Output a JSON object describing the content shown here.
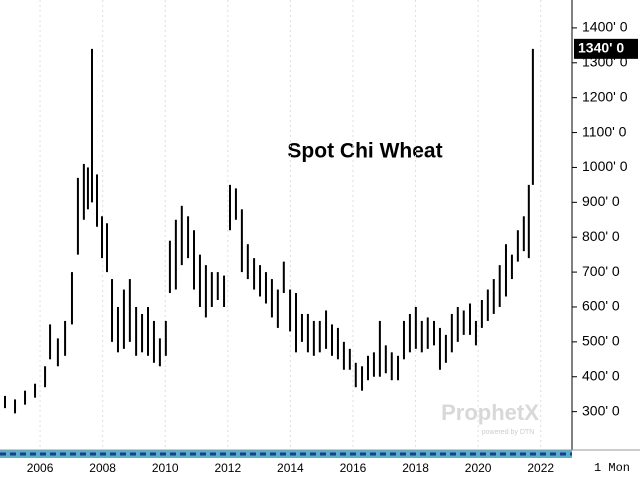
{
  "chart_data": {
    "type": "range",
    "title": "Spot Chi Wheat",
    "color": "#000000",
    "x": [
      2004.88,
      2005.2,
      2005.52,
      2005.84,
      2006.16,
      2006.32,
      2006.57,
      2006.8,
      2007.02,
      2007.21,
      2007.4,
      2007.53,
      2007.66,
      2007.82,
      2007.98,
      2008.14,
      2008.3,
      2008.49,
      2008.68,
      2008.87,
      2009.07,
      2009.26,
      2009.45,
      2009.64,
      2009.83,
      2010.02,
      2010.15,
      2010.34,
      2010.53,
      2010.73,
      2010.92,
      2011.11,
      2011.3,
      2011.49,
      2011.68,
      2011.88,
      2012.07,
      2012.26,
      2012.45,
      2012.64,
      2012.84,
      2013.03,
      2013.22,
      2013.41,
      2013.6,
      2013.79,
      2013.99,
      2014.18,
      2014.37,
      2014.56,
      2014.75,
      2014.94,
      2015.14,
      2015.33,
      2015.52,
      2015.71,
      2015.9,
      2016.09,
      2016.29,
      2016.48,
      2016.67,
      2016.86,
      2017.05,
      2017.24,
      2017.44,
      2017.63,
      2017.82,
      2018.01,
      2018.2,
      2018.39,
      2018.59,
      2018.78,
      2018.97,
      2019.16,
      2019.35,
      2019.54,
      2019.74,
      2019.93,
      2020.12,
      2020.31,
      2020.5,
      2020.69,
      2020.89,
      2021.08,
      2021.27,
      2021.46,
      2021.62,
      2021.75
    ],
    "high": [
      345,
      335,
      360,
      380,
      430,
      550,
      510,
      560,
      700,
      970,
      1010,
      1000,
      1340,
      980,
      860,
      840,
      680,
      600,
      650,
      680,
      600,
      580,
      600,
      560,
      510,
      560,
      790,
      850,
      890,
      860,
      820,
      750,
      720,
      700,
      700,
      690,
      950,
      940,
      880,
      780,
      740,
      720,
      700,
      680,
      650,
      730,
      650,
      640,
      580,
      580,
      560,
      560,
      590,
      550,
      540,
      500,
      480,
      440,
      430,
      460,
      470,
      560,
      490,
      470,
      460,
      560,
      580,
      600,
      560,
      570,
      560,
      540,
      520,
      580,
      600,
      590,
      610,
      560,
      620,
      650,
      680,
      720,
      780,
      750,
      820,
      860,
      950,
      1340
    ],
    "low": [
      310,
      295,
      320,
      340,
      370,
      450,
      430,
      460,
      550,
      750,
      850,
      880,
      900,
      830,
      740,
      700,
      500,
      470,
      480,
      500,
      460,
      470,
      460,
      440,
      430,
      460,
      640,
      650,
      720,
      740,
      650,
      600,
      570,
      600,
      620,
      600,
      820,
      850,
      700,
      680,
      650,
      630,
      610,
      570,
      540,
      640,
      530,
      470,
      500,
      470,
      460,
      470,
      480,
      460,
      450,
      420,
      420,
      370,
      360,
      390,
      400,
      400,
      410,
      390,
      390,
      450,
      470,
      480,
      470,
      480,
      490,
      420,
      440,
      470,
      500,
      520,
      520,
      490,
      540,
      560,
      580,
      600,
      630,
      680,
      730,
      760,
      740,
      950
    ],
    "xlim": [
      2004.72,
      2023.0
    ],
    "ylim": [
      190,
      1480
    ],
    "xticks": [
      2006,
      2008,
      2010,
      2012,
      2014,
      2016,
      2018,
      2020,
      2022
    ],
    "yticks": [
      {
        "value": 300,
        "label": "300' 0"
      },
      {
        "value": 400,
        "label": "400' 0"
      },
      {
        "value": 500,
        "label": "500' 0"
      },
      {
        "value": 600,
        "label": "600' 0"
      },
      {
        "value": 700,
        "label": "700' 0"
      },
      {
        "value": 800,
        "label": "800' 0"
      },
      {
        "value": 900,
        "label": "900' 0"
      },
      {
        "value": 1000,
        "label": "1000' 0"
      },
      {
        "value": 1100,
        "label": "1100' 0"
      },
      {
        "value": 1200,
        "label": "1200' 0"
      },
      {
        "value": 1300,
        "label": "1300' 0"
      },
      {
        "value": 1400,
        "label": "1400' 0"
      }
    ],
    "last_price": {
      "value": 1340,
      "label": "1340' 0"
    },
    "period": "1 Mon",
    "watermark": "ProphetX",
    "watermark_sub": "powered by DTN",
    "grid": true
  }
}
